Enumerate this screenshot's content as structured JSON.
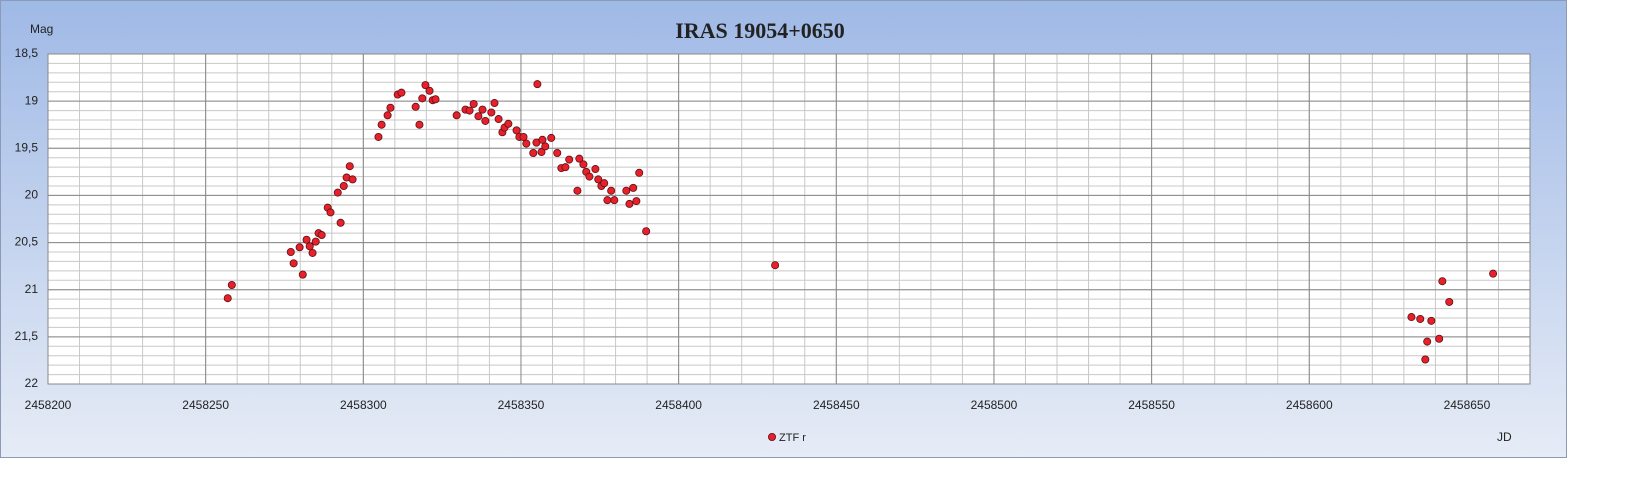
{
  "chart_data": {
    "type": "scatter",
    "title": "IRAS 19054+0650",
    "y_axis_label": "Mag",
    "x_axis_label": "JD",
    "xlim": [
      2458200,
      2458670
    ],
    "ylim": [
      22,
      18.5
    ],
    "xticks": [
      2458200,
      2458250,
      2458300,
      2458350,
      2458400,
      2458450,
      2458500,
      2458550,
      2458600,
      2458650
    ],
    "yticks": [
      {
        "value": 18.5,
        "label": "18,5"
      },
      19,
      {
        "value": 19.5,
        "label": "19,5"
      },
      20,
      {
        "value": 20.5,
        "label": "20,5"
      },
      21,
      {
        "value": 21.5,
        "label": "21,5"
      },
      22
    ],
    "grid": true,
    "x_minor_grid_step": 10,
    "y_minor_grid_step": 0.1,
    "legend_position": "bottom",
    "series": [
      {
        "name": "ZTF r",
        "color": "#e8202a",
        "x": [
          2458257.0,
          2458258.3,
          2458277.0,
          2458277.9,
          2458279.8,
          2458280.8,
          2458282.0,
          2458283.0,
          2458283.9,
          2458284.9,
          2458285.8,
          2458286.8,
          2458288.7,
          2458289.6,
          2458291.9,
          2458292.8,
          2458293.8,
          2458294.7,
          2458295.7,
          2458296.6,
          2458304.8,
          2458305.8,
          2458307.7,
          2458308.6,
          2458310.9,
          2458312.1,
          2458316.6,
          2458317.8,
          2458318.7,
          2458319.7,
          2458321.0,
          2458322.0,
          2458322.9,
          2458329.6,
          2458332.4,
          2458333.7,
          2458335.0,
          2458336.5,
          2458337.8,
          2458338.7,
          2458340.6,
          2458341.6,
          2458342.9,
          2458344.1,
          2458344.8,
          2458346.0,
          2458348.6,
          2458349.5,
          2458350.8,
          2458351.7,
          2458353.9,
          2458354.9,
          2458355.2,
          2458356.5,
          2458356.8,
          2458357.7,
          2458359.6,
          2458361.5,
          2458362.8,
          2458364.1,
          2458365.3,
          2458367.9,
          2458368.5,
          2458369.8,
          2458370.7,
          2458371.7,
          2458373.6,
          2458374.5,
          2458375.5,
          2458376.4,
          2458377.4,
          2458378.6,
          2458379.6,
          2458383.4,
          2458384.4,
          2458385.6,
          2458386.6,
          2458387.5,
          2458389.7,
          2458430.6,
          2458632.4,
          2458635.2,
          2458636.8,
          2458637.4,
          2458638.7,
          2458641.2,
          2458642.2,
          2458644.4,
          2458658.3
        ],
        "values": [
          21.09,
          20.95,
          20.6,
          20.72,
          20.55,
          20.84,
          20.47,
          20.54,
          20.61,
          20.49,
          20.4,
          20.42,
          20.13,
          20.18,
          19.97,
          20.29,
          19.9,
          19.81,
          19.69,
          19.83,
          19.38,
          19.25,
          19.15,
          19.07,
          18.93,
          18.91,
          19.06,
          19.25,
          18.97,
          18.83,
          18.89,
          18.99,
          18.98,
          19.15,
          19.09,
          19.1,
          19.03,
          19.16,
          19.09,
          19.21,
          19.12,
          19.02,
          19.19,
          19.33,
          19.28,
          19.24,
          19.31,
          19.38,
          19.38,
          19.45,
          19.55,
          19.44,
          18.82,
          19.54,
          19.41,
          19.48,
          19.39,
          19.55,
          19.71,
          19.7,
          19.62,
          19.95,
          19.61,
          19.67,
          19.75,
          19.8,
          19.72,
          19.83,
          19.9,
          19.87,
          20.05,
          19.95,
          20.05,
          19.95,
          20.09,
          19.92,
          20.06,
          19.76,
          20.38,
          20.74,
          21.29,
          21.31,
          21.74,
          21.55,
          21.33,
          21.52,
          20.91,
          21.13,
          20.83
        ]
      }
    ]
  }
}
